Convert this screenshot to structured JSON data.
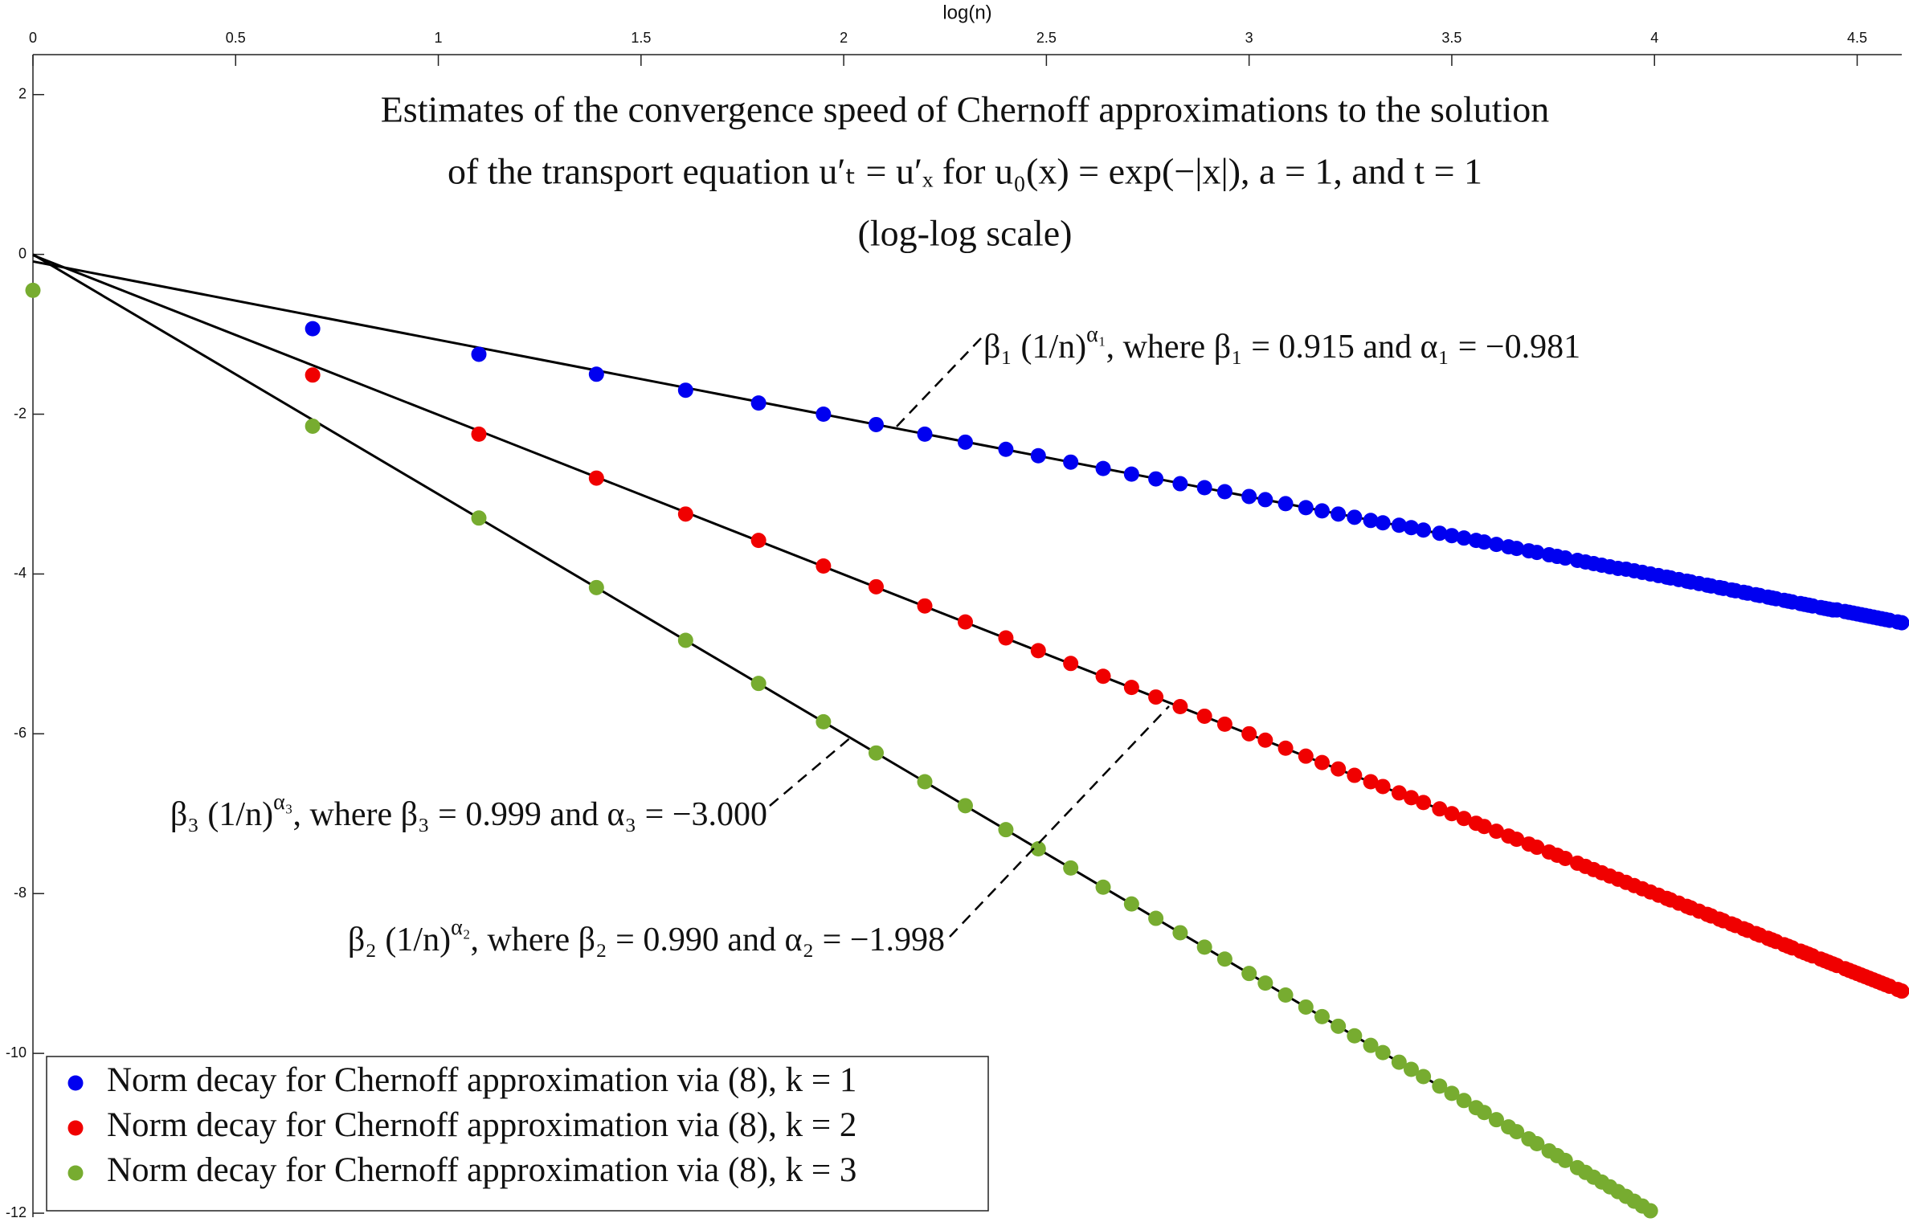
{
  "chart_data": {
    "type": "scatter",
    "title": [
      "Estimates of the convergence speed of Chernoff approximations to the solution",
      "of the transport equation u′ₜ = u′ₓ for u₀(x) = exp(−|x|), a = 1, and t = 1",
      "(log-log scale)"
    ],
    "x_label": "log(n)",
    "xlim": [
      0,
      4.61
    ],
    "xticks": [
      0,
      0.5,
      1,
      1.5,
      2,
      2.5,
      3,
      3.5,
      4,
      4.5
    ],
    "ylim": [
      -12.05,
      2.5
    ],
    "yticks": [
      -12,
      -10,
      -8,
      -6,
      -4,
      -2,
      0,
      2
    ],
    "grid": false,
    "legend": "lower left",
    "x": [
      0,
      0.69,
      1.1,
      1.39,
      1.61,
      1.79,
      1.95,
      2.08,
      2.2,
      2.3,
      2.4,
      2.48,
      2.56,
      2.64,
      2.71,
      2.77,
      2.83,
      2.89,
      2.94,
      3,
      3.04,
      3.09,
      3.14,
      3.18,
      3.22,
      3.26,
      3.3,
      3.33,
      3.37,
      3.4,
      3.43,
      3.47,
      3.5,
      3.53,
      3.56,
      3.58,
      3.61,
      3.64,
      3.66,
      3.69,
      3.71,
      3.74,
      3.76,
      3.78,
      3.81,
      3.83,
      3.85,
      3.87,
      3.89,
      3.91,
      3.93,
      3.95,
      3.97,
      3.99,
      4.01,
      4.03,
      4.04,
      4.06,
      4.08,
      4.09,
      4.11,
      4.13,
      4.14,
      4.16,
      4.17,
      4.19,
      4.2,
      4.22,
      4.23,
      4.25,
      4.26,
      4.28,
      4.29,
      4.3,
      4.32,
      4.33,
      4.34,
      4.36,
      4.37,
      4.38,
      4.39,
      4.41,
      4.42,
      4.43,
      4.44,
      4.45,
      4.47,
      4.48,
      4.49,
      4.5,
      4.51,
      4.52,
      4.53,
      4.54,
      4.55,
      4.56,
      4.57,
      4.58,
      4.6,
      4.61
    ],
    "series": [
      {
        "name": "Norm decay for Chernoff approximation via (8), k = 1",
        "color": "#0000f0",
        "values": [
          null,
          -0.93,
          -1.25,
          -1.5,
          -1.7,
          -1.86,
          -2,
          -2.13,
          -2.25,
          -2.35,
          -2.44,
          -2.52,
          -2.6,
          -2.68,
          -2.75,
          -2.81,
          -2.87,
          -2.92,
          -2.97,
          -3.03,
          -3.07,
          -3.12,
          -3.17,
          -3.21,
          -3.25,
          -3.29,
          -3.33,
          -3.36,
          -3.39,
          -3.42,
          -3.45,
          -3.49,
          -3.52,
          -3.55,
          -3.58,
          -3.6,
          -3.63,
          -3.66,
          -3.68,
          -3.71,
          -3.73,
          -3.76,
          -3.78,
          -3.8,
          -3.83,
          -3.85,
          -3.87,
          -3.89,
          -3.91,
          -3.93,
          -3.94,
          -3.96,
          -3.98,
          -4,
          -4.02,
          -4.04,
          -4.05,
          -4.07,
          -4.09,
          -4.1,
          -4.12,
          -4.14,
          -4.15,
          -4.17,
          -4.18,
          -4.2,
          -4.21,
          -4.23,
          -4.24,
          -4.26,
          -4.27,
          -4.29,
          -4.3,
          -4.31,
          -4.33,
          -4.34,
          -4.35,
          -4.37,
          -4.38,
          -4.39,
          -4.4,
          -4.42,
          -4.43,
          -4.44,
          -4.45,
          -4.45,
          -4.47,
          -4.48,
          -4.49,
          -4.5,
          -4.51,
          -4.52,
          -4.53,
          -4.54,
          -4.55,
          -4.56,
          -4.57,
          -4.58,
          -4.6,
          -4.61
        ]
      },
      {
        "name": "Norm decay for Chernoff approximation via (8), k = 2",
        "color": "#f00000",
        "values": [
          null,
          -1.51,
          -2.25,
          -2.8,
          -3.25,
          -3.58,
          -3.9,
          -4.16,
          -4.4,
          -4.6,
          -4.8,
          -4.96,
          -5.12,
          -5.28,
          -5.42,
          -5.54,
          -5.66,
          -5.78,
          -5.88,
          -6,
          -6.08,
          -6.18,
          -6.28,
          -6.36,
          -6.44,
          -6.52,
          -6.6,
          -6.66,
          -6.74,
          -6.8,
          -6.86,
          -6.94,
          -7,
          -7.06,
          -7.12,
          -7.16,
          -7.22,
          -7.28,
          -7.32,
          -7.38,
          -7.42,
          -7.48,
          -7.52,
          -7.56,
          -7.62,
          -7.66,
          -7.7,
          -7.74,
          -7.78,
          -7.82,
          -7.86,
          -7.9,
          -7.94,
          -7.98,
          -8.02,
          -8.06,
          -8.08,
          -8.12,
          -8.16,
          -8.18,
          -8.22,
          -8.26,
          -8.28,
          -8.32,
          -8.34,
          -8.38,
          -8.4,
          -8.44,
          -8.46,
          -8.5,
          -8.52,
          -8.56,
          -8.58,
          -8.6,
          -8.64,
          -8.66,
          -8.68,
          -8.72,
          -8.74,
          -8.76,
          -8.78,
          -8.82,
          -8.84,
          -8.86,
          -8.88,
          -8.9,
          -8.94,
          -8.96,
          -8.98,
          -9,
          -9.02,
          -9.04,
          -9.06,
          -9.08,
          -9.1,
          -9.12,
          -9.14,
          -9.16,
          -9.2,
          -9.22
        ]
      },
      {
        "name": "Norm decay for Chernoff approximation via (8), k = 3",
        "color": "#77ac30",
        "values": [
          -0.45,
          -2.15,
          -3.3,
          -4.17,
          -4.83,
          -5.37,
          -5.85,
          -6.24,
          -6.6,
          -6.9,
          -7.2,
          -7.44,
          -7.68,
          -7.92,
          -8.13,
          -8.31,
          -8.49,
          -8.67,
          -8.82,
          -9,
          -9.12,
          -9.27,
          -9.42,
          -9.54,
          -9.66,
          -9.78,
          -9.9,
          -9.99,
          -10.11,
          -10.2,
          -10.29,
          -10.41,
          -10.5,
          -10.59,
          -10.68,
          -10.74,
          -10.83,
          -10.92,
          -10.98,
          -11.07,
          -11.13,
          -11.22,
          -11.28,
          -11.34,
          -11.43,
          -11.49,
          -11.55,
          -11.61,
          -11.67,
          -11.73,
          -11.79,
          -11.85,
          -11.91,
          -11.97,
          null,
          null,
          null,
          null,
          null,
          null,
          null,
          null,
          null,
          null,
          null,
          null,
          null,
          null,
          null,
          null,
          null,
          null,
          null,
          null,
          null,
          null,
          null,
          null,
          null,
          null,
          null,
          null,
          null,
          null,
          null,
          null,
          null,
          null,
          null,
          null,
          null,
          null,
          null,
          null,
          null,
          null,
          null,
          null,
          null,
          null
        ]
      }
    ],
    "fits": [
      {
        "term": "β₁ (1/n)",
        "power": "α₁",
        "where": ", where β₁ = ",
        "beta": {
          "value": 0.915,
          "label": "0.915"
        },
        "and": " and α₁ = ",
        "alpha": {
          "value": -0.981,
          "label": "−0.981"
        },
        "color": "#000000"
      },
      {
        "term": "β₂ (1/n)",
        "power": "α₂",
        "where": ", where β₂ = ",
        "beta": {
          "value": 0.99,
          "label": "0.990"
        },
        "and": " and α₂ = ",
        "alpha": {
          "value": -1.998,
          "label": "−1.998"
        },
        "color": "#000000"
      },
      {
        "term": "β₃ (1/n)",
        "power": "α₃",
        "where": ", where β₃ = ",
        "beta": {
          "value": 0.999,
          "label": "0.999"
        },
        "and": " and α₃ = ",
        "alpha": {
          "value": -3,
          "label": "−3.000"
        },
        "color": "#000000"
      }
    ]
  }
}
